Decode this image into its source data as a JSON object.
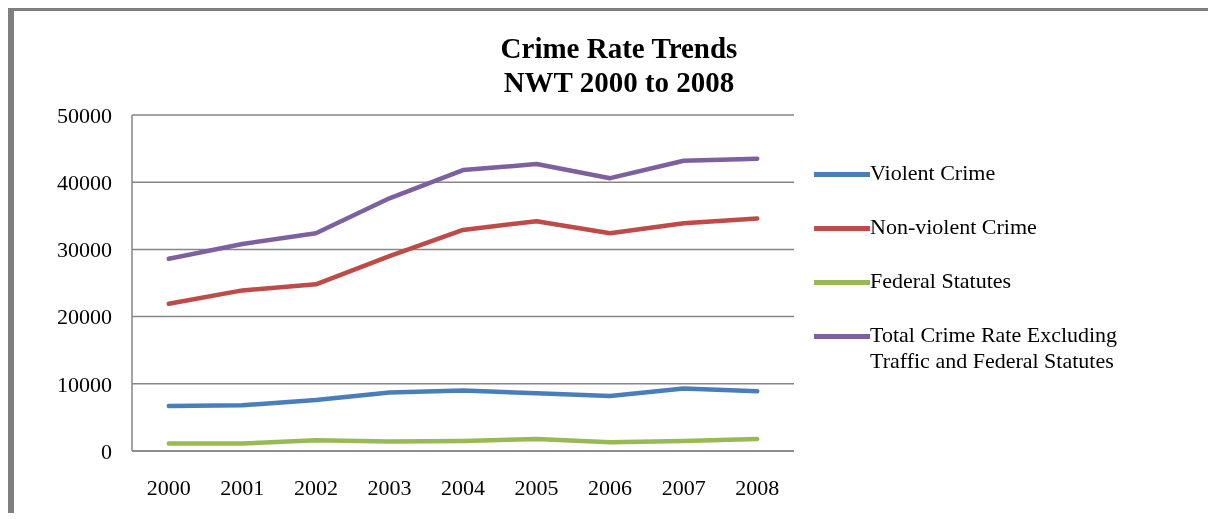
{
  "chart_data": {
    "type": "line",
    "title": "Crime Rate Trends\nNWT 2000 to 2008",
    "categories": [
      "2000",
      "2001",
      "2002",
      "2003",
      "2004",
      "2005",
      "2006",
      "2007",
      "2008"
    ],
    "series": [
      {
        "name": "Violent Crime",
        "color": "#4a7ebb",
        "values": [
          6700,
          6800,
          7600,
          8700,
          9000,
          8600,
          8200,
          9300,
          8900
        ]
      },
      {
        "name": "Non-violent Crime",
        "color": "#be4b48",
        "values": [
          21900,
          23900,
          24800,
          29000,
          32900,
          34200,
          32400,
          33900,
          34600
        ]
      },
      {
        "name": "Federal Statutes",
        "color": "#98b954",
        "values": [
          1100,
          1100,
          1600,
          1400,
          1500,
          1800,
          1300,
          1500,
          1800
        ]
      },
      {
        "name": "Total Crime Rate Excluding Traffic and Federal Statutes",
        "color": "#7d60a0",
        "values": [
          28600,
          30800,
          32400,
          37600,
          41800,
          42700,
          40600,
          43200,
          43500
        ]
      }
    ],
    "ylim": [
      0,
      50000
    ],
    "yticks": [
      0,
      10000,
      20000,
      30000,
      40000,
      50000
    ],
    "grid": "y",
    "legend": "right",
    "marker": "none",
    "line_style": "solid"
  }
}
